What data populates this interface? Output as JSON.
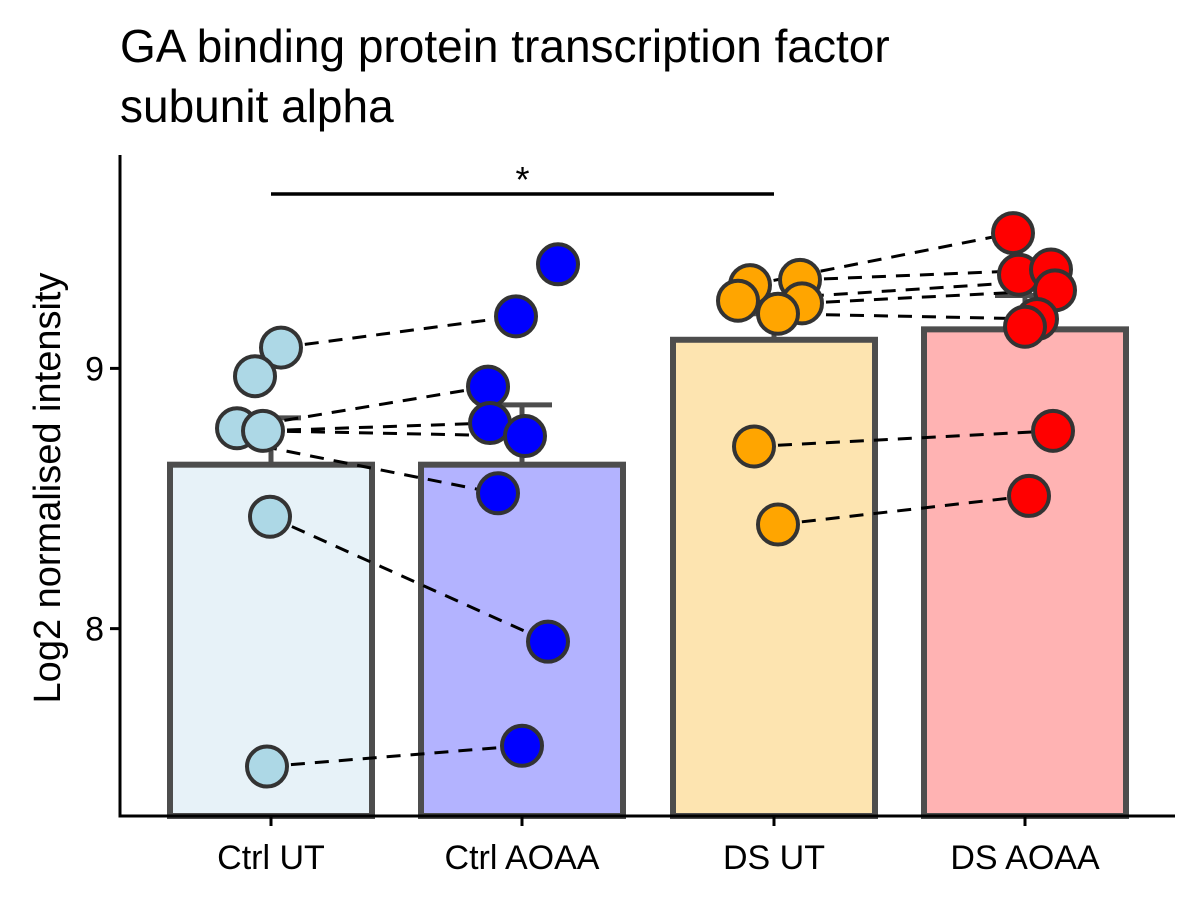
{
  "chart_data": {
    "type": "bar",
    "title": "GA binding protein transcription factor subunit alpha",
    "title_lines": [
      "GA binding protein transcription factor",
      "subunit alpha"
    ],
    "xlabel": "",
    "ylabel": "Log2 normalised intensity",
    "ylim": [
      7.28,
      9.82
    ],
    "yticks": [
      8,
      9
    ],
    "categories": [
      "Ctrl UT",
      "Ctrl AOAA",
      "DS UT",
      "DS AOAA"
    ],
    "bar_values": [
      8.63,
      8.63,
      9.11,
      9.15
    ],
    "error_upper": [
      8.81,
      8.86,
      9.21,
      9.28
    ],
    "bar_fill": [
      "#e7f2f8",
      "#b3b3ff",
      "#fde4b0",
      "#ffb3b3"
    ],
    "point_color": [
      "#add8e6",
      "#0000ff",
      "#ffa500",
      "#ff0000"
    ],
    "points": [
      [
        9.08,
        8.97,
        8.77,
        8.76,
        8.43,
        7.47
      ],
      [
        9.4,
        9.2,
        8.93,
        8.79,
        8.74,
        8.52,
        7.95,
        7.55
      ],
      [
        9.32,
        9.34,
        9.26,
        9.25,
        9.21,
        8.7,
        8.4
      ],
      [
        9.52,
        9.36,
        9.38,
        9.3,
        9.19,
        9.16,
        8.76,
        8.51
      ]
    ],
    "pairs": [
      {
        "from": [
          0,
          9.08
        ],
        "to": [
          1,
          9.2
        ]
      },
      {
        "from": [
          0,
          8.77
        ],
        "to": [
          1,
          8.93
        ]
      },
      {
        "from": [
          0,
          8.76
        ],
        "to": [
          1,
          8.79
        ]
      },
      {
        "from": [
          0,
          8.76
        ],
        "to": [
          1,
          8.74
        ]
      },
      {
        "from": [
          0,
          8.7
        ],
        "to": [
          1,
          8.52
        ]
      },
      {
        "from": [
          0,
          8.43
        ],
        "to": [
          1,
          7.95
        ]
      },
      {
        "from": [
          0,
          7.47
        ],
        "to": [
          1,
          7.55
        ]
      },
      {
        "from": [
          2,
          9.32
        ],
        "to": [
          3,
          9.52
        ]
      },
      {
        "from": [
          2,
          9.34
        ],
        "to": [
          3,
          9.38
        ]
      },
      {
        "from": [
          2,
          9.26
        ],
        "to": [
          3,
          9.33
        ]
      },
      {
        "from": [
          2,
          9.25
        ],
        "to": [
          3,
          9.3
        ]
      },
      {
        "from": [
          2,
          9.21
        ],
        "to": [
          3,
          9.19
        ]
      },
      {
        "from": [
          2,
          8.7
        ],
        "to": [
          3,
          8.76
        ]
      },
      {
        "from": [
          2,
          8.4
        ],
        "to": [
          3,
          8.51
        ]
      }
    ],
    "significance": [
      {
        "from_category": 0,
        "to_category": 2,
        "y": 9.67,
        "label": "*"
      }
    ],
    "grid": false,
    "legend": "none"
  }
}
